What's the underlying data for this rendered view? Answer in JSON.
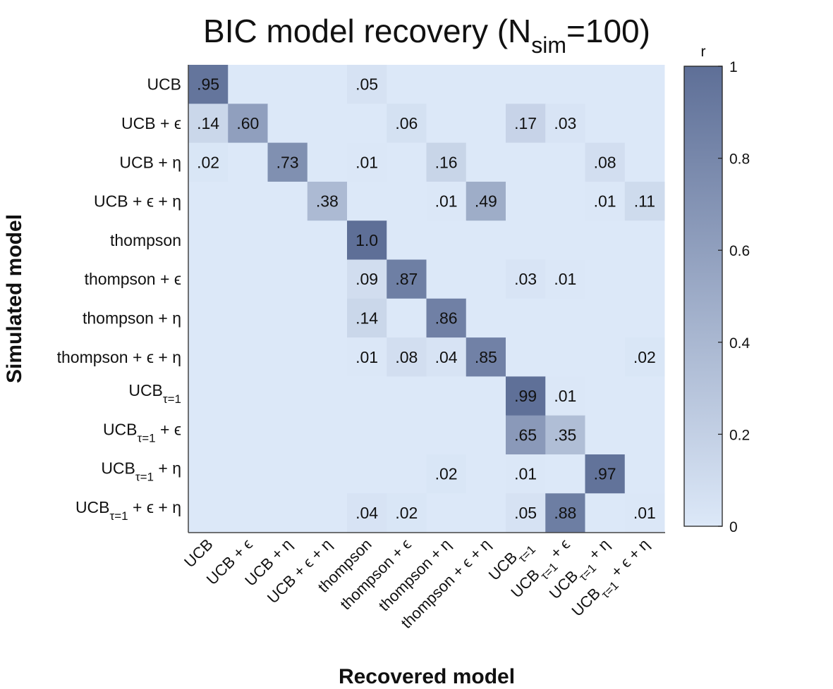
{
  "chart_data": {
    "type": "heatmap",
    "title": {
      "main": "BIC model recovery (N",
      "sub": "sim",
      "end": "=100)"
    },
    "xlabel": "Recovered model",
    "ylabel": "Simulated model",
    "colorbar": {
      "label": "r",
      "range": [
        0,
        1
      ],
      "ticks": [
        {
          "value": 0,
          "label": "0"
        },
        {
          "value": 0.2,
          "label": "0.2"
        },
        {
          "value": 0.4,
          "label": "0.4"
        },
        {
          "value": 0.6,
          "label": "0.6"
        },
        {
          "value": 0.8,
          "label": "0.8"
        },
        {
          "value": 1,
          "label": "1"
        }
      ],
      "color_low": "#dce8f8",
      "color_high": "#5e6f97"
    },
    "row_labels": [
      {
        "base": "UCB",
        "sub": "",
        "suffix": ""
      },
      {
        "base": "UCB",
        "sub": "",
        "suffix": " + ϵ"
      },
      {
        "base": "UCB",
        "sub": "",
        "suffix": " + η"
      },
      {
        "base": "UCB",
        "sub": "",
        "suffix": " + ϵ + η"
      },
      {
        "base": "thompson",
        "sub": "",
        "suffix": ""
      },
      {
        "base": "thompson",
        "sub": "",
        "suffix": " + ϵ"
      },
      {
        "base": "thompson",
        "sub": "",
        "suffix": " + η"
      },
      {
        "base": "thompson",
        "sub": "",
        "suffix": " + ϵ + η"
      },
      {
        "base": "UCB",
        "sub": "τ=1",
        "suffix": ""
      },
      {
        "base": "UCB",
        "sub": "τ=1",
        "suffix": " + ϵ"
      },
      {
        "base": "UCB",
        "sub": "τ=1",
        "suffix": " + η"
      },
      {
        "base": "UCB",
        "sub": "τ=1",
        "suffix": " + ϵ + η"
      }
    ],
    "col_labels": [
      {
        "base": "UCB",
        "sub": "",
        "suffix": ""
      },
      {
        "base": "UCB",
        "sub": "",
        "suffix": " + ϵ"
      },
      {
        "base": "UCB",
        "sub": "",
        "suffix": " + η"
      },
      {
        "base": "UCB",
        "sub": "",
        "suffix": " + ϵ + η"
      },
      {
        "base": "thompson",
        "sub": "",
        "suffix": ""
      },
      {
        "base": "thompson",
        "sub": "",
        "suffix": " + ϵ"
      },
      {
        "base": "thompson",
        "sub": "",
        "suffix": " + η"
      },
      {
        "base": "thompson",
        "sub": "",
        "suffix": " + ϵ + η"
      },
      {
        "base": "UCB",
        "sub": "τ=1",
        "suffix": ""
      },
      {
        "base": "UCB",
        "sub": "τ=1",
        "suffix": " + ϵ"
      },
      {
        "base": "UCB",
        "sub": "τ=1",
        "suffix": " + η"
      },
      {
        "base": "UCB",
        "sub": "τ=1",
        "suffix": " + ϵ + η"
      }
    ],
    "values": [
      [
        0.95,
        0,
        0,
        0,
        0.05,
        0,
        0,
        0,
        0,
        0,
        0,
        0
      ],
      [
        0.14,
        0.6,
        0,
        0,
        0,
        0.06,
        0,
        0,
        0.17,
        0.03,
        0,
        0
      ],
      [
        0.02,
        0,
        0.73,
        0,
        0.01,
        0,
        0.16,
        0,
        0,
        0,
        0.08,
        0
      ],
      [
        0,
        0,
        0,
        0.38,
        0,
        0,
        0.01,
        0.49,
        0,
        0,
        0.01,
        0.11
      ],
      [
        0,
        0,
        0,
        0,
        1.0,
        0,
        0,
        0,
        0,
        0,
        0,
        0
      ],
      [
        0,
        0,
        0,
        0,
        0.09,
        0.87,
        0,
        0,
        0.03,
        0.01,
        0,
        0
      ],
      [
        0,
        0,
        0,
        0,
        0.14,
        0,
        0.86,
        0,
        0,
        0,
        0,
        0
      ],
      [
        0,
        0,
        0,
        0,
        0.01,
        0.08,
        0.04,
        0.85,
        0,
        0,
        0,
        0.02
      ],
      [
        0,
        0,
        0,
        0,
        0,
        0,
        0,
        0,
        0.99,
        0.01,
        0,
        0
      ],
      [
        0,
        0,
        0,
        0,
        0,
        0,
        0,
        0,
        0.65,
        0.35,
        0,
        0
      ],
      [
        0,
        0,
        0,
        0,
        0,
        0,
        0.02,
        0,
        0.01,
        0,
        0.97,
        0
      ],
      [
        0,
        0,
        0,
        0,
        0.04,
        0.02,
        0,
        0,
        0.05,
        0.88,
        0,
        0.01
      ]
    ],
    "cell_labels": [
      [
        ".95",
        "",
        "",
        "",
        ".05",
        "",
        "",
        "",
        "",
        "",
        "",
        ""
      ],
      [
        ".14",
        ".60",
        "",
        "",
        "",
        ".06",
        "",
        "",
        ".17",
        ".03",
        "",
        ""
      ],
      [
        ".02",
        "",
        ".73",
        "",
        ".01",
        "",
        ".16",
        "",
        "",
        "",
        ".08",
        ""
      ],
      [
        "",
        "",
        "",
        ".38",
        "",
        "",
        ".01",
        ".49",
        "",
        "",
        ".01",
        ".11"
      ],
      [
        "",
        "",
        "",
        "",
        "1.0",
        "",
        "",
        "",
        "",
        "",
        "",
        ""
      ],
      [
        "",
        "",
        "",
        "",
        ".09",
        ".87",
        "",
        "",
        ".03",
        ".01",
        "",
        ""
      ],
      [
        "",
        "",
        "",
        "",
        ".14",
        "",
        ".86",
        "",
        "",
        "",
        "",
        ""
      ],
      [
        "",
        "",
        "",
        "",
        ".01",
        ".08",
        ".04",
        ".85",
        "",
        "",
        "",
        ".02"
      ],
      [
        "",
        "",
        "",
        "",
        "",
        "",
        "",
        "",
        ".99",
        ".01",
        "",
        ""
      ],
      [
        "",
        "",
        "",
        "",
        "",
        "",
        "",
        "",
        ".65",
        ".35",
        "",
        ""
      ],
      [
        "",
        "",
        "",
        "",
        "",
        "",
        ".02",
        "",
        ".01",
        "",
        ".97",
        ""
      ],
      [
        "",
        "",
        "",
        "",
        ".04",
        ".02",
        "",
        "",
        ".05",
        ".88",
        "",
        ".01"
      ]
    ]
  }
}
